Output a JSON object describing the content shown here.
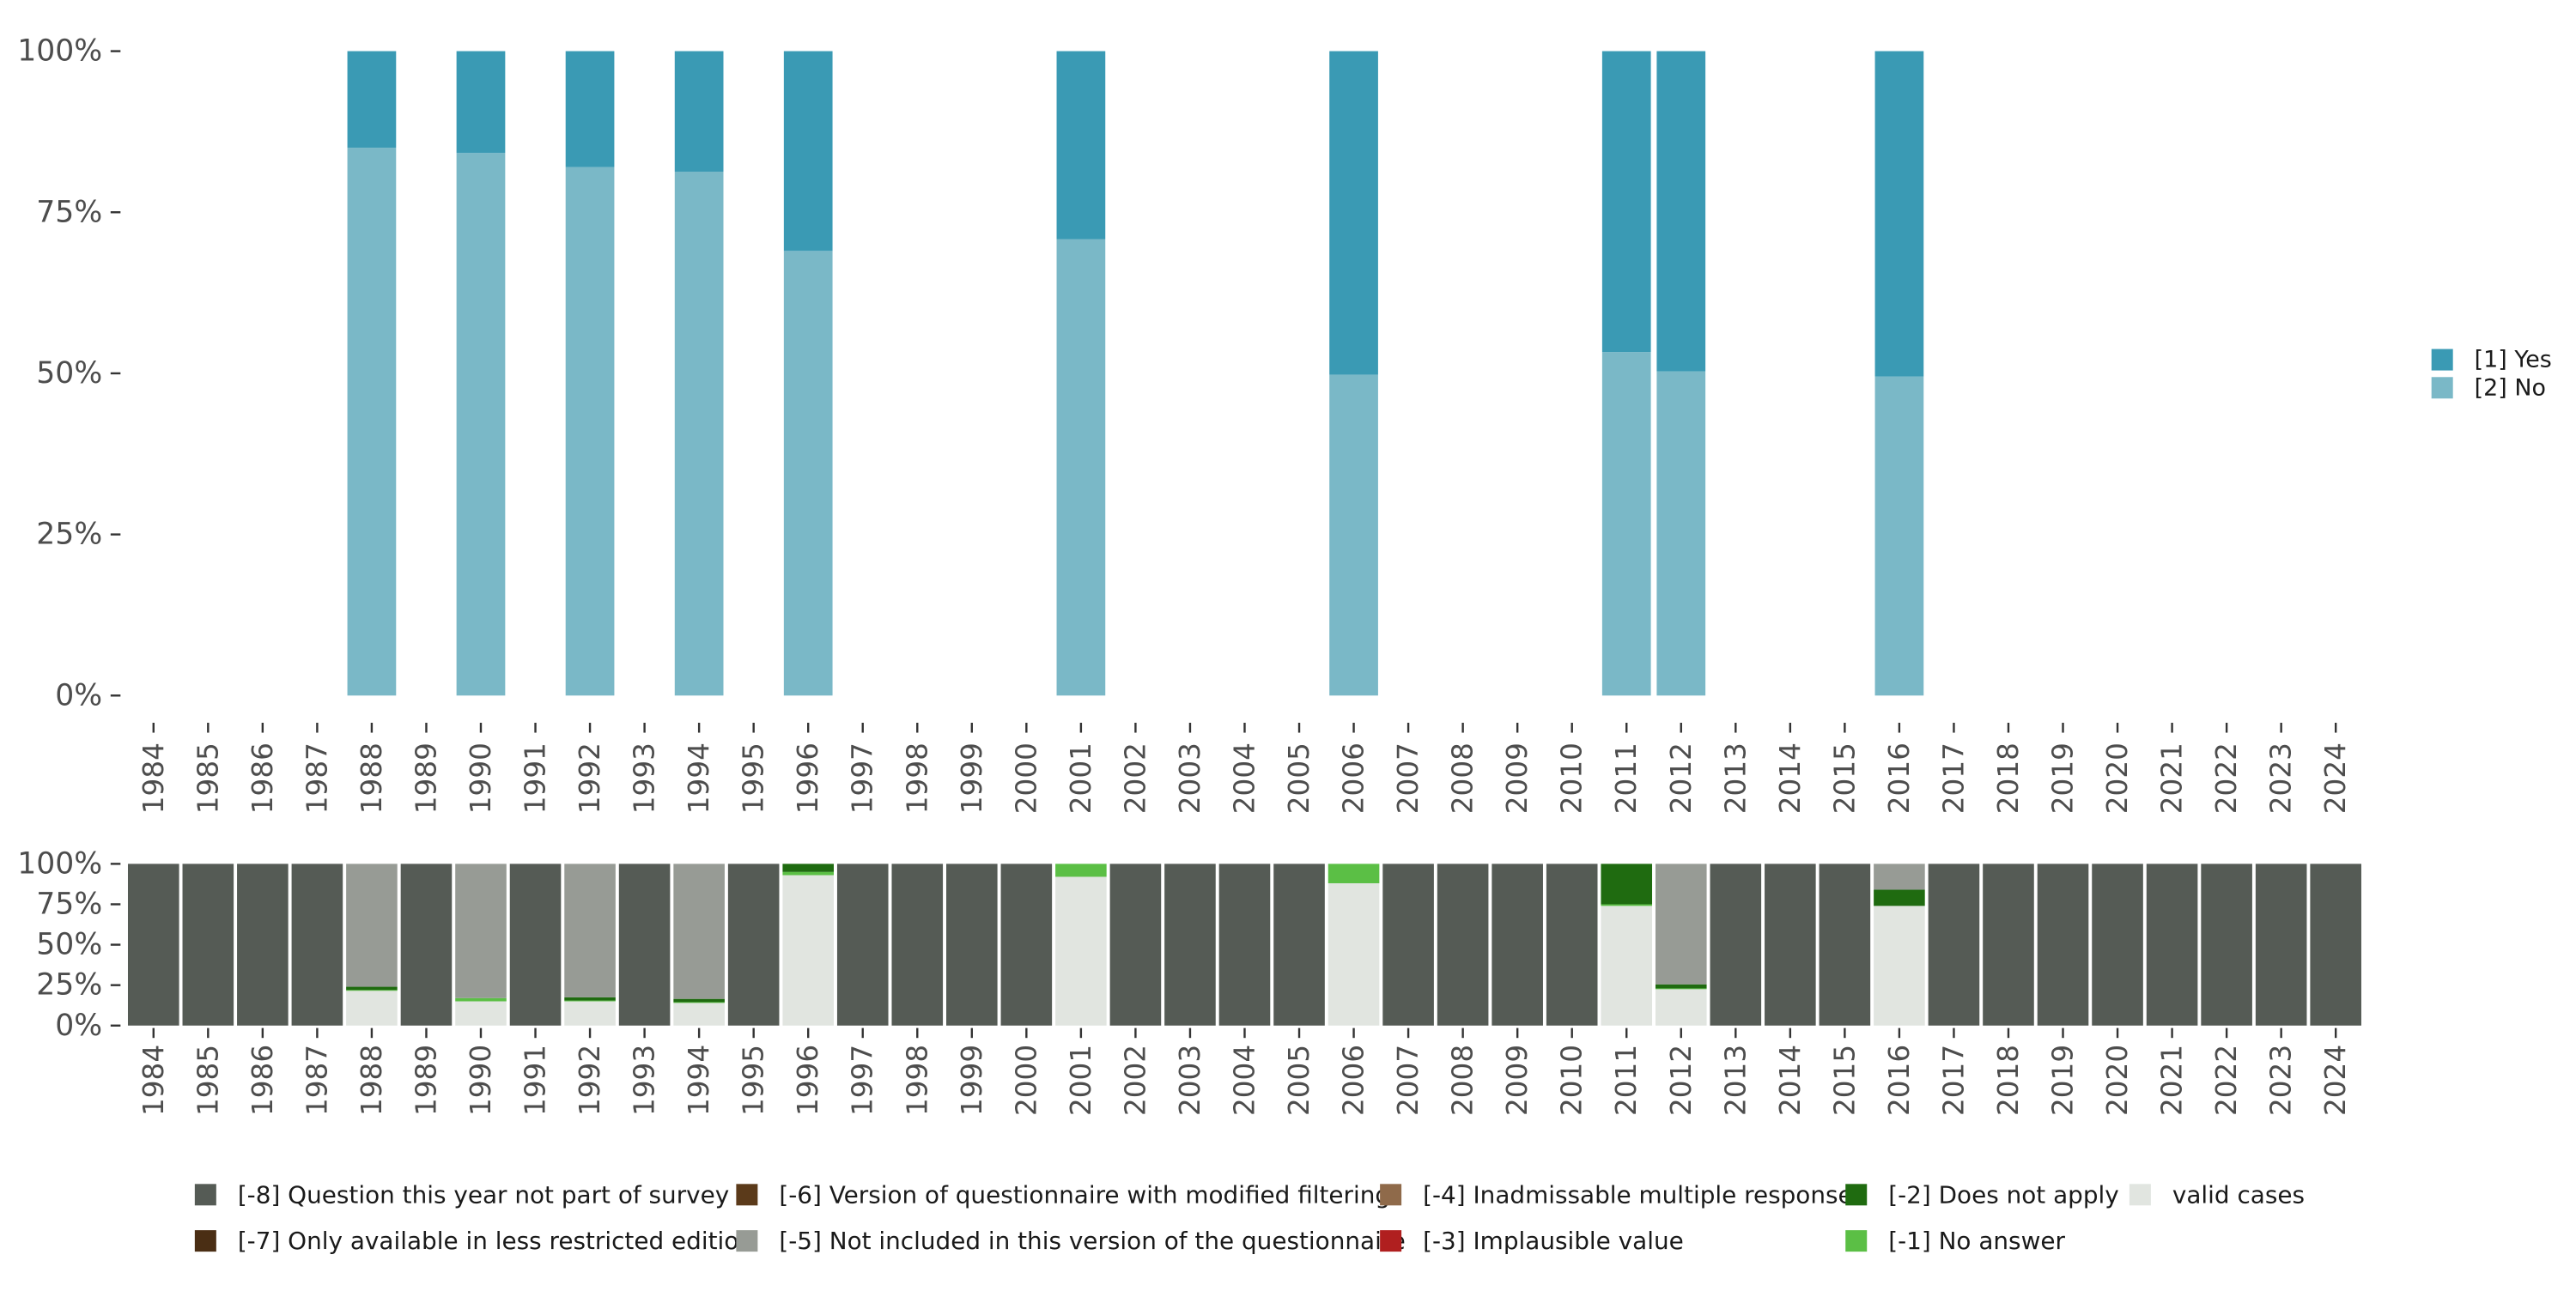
{
  "chart_data": [
    {
      "type": "bar",
      "stacked": true,
      "percent": true,
      "categories": [
        "1984",
        "1985",
        "1986",
        "1987",
        "1988",
        "1989",
        "1990",
        "1991",
        "1992",
        "1993",
        "1994",
        "1995",
        "1996",
        "1997",
        "1998",
        "1999",
        "2000",
        "2001",
        "2002",
        "2003",
        "2004",
        "2005",
        "2006",
        "2007",
        "2008",
        "2009",
        "2010",
        "2011",
        "2012",
        "2013",
        "2014",
        "2015",
        "2016",
        "2017",
        "2018",
        "2019",
        "2020",
        "2021",
        "2022",
        "2023",
        "2024"
      ],
      "yticks": [
        "0%",
        "25%",
        "50%",
        "75%",
        "100%"
      ],
      "ylim": [
        0,
        100
      ],
      "legend_position": "right",
      "series": [
        {
          "name": "[2] No",
          "color": "#7ab8c7",
          "values": [
            null,
            null,
            null,
            null,
            85,
            null,
            84.2,
            null,
            82,
            null,
            81.3,
            null,
            69,
            null,
            null,
            null,
            null,
            70.8,
            null,
            null,
            null,
            null,
            49.8,
            null,
            null,
            null,
            null,
            53.3,
            50.3,
            null,
            null,
            null,
            49.5,
            null,
            null,
            null,
            null,
            null,
            null,
            null,
            null
          ]
        },
        {
          "name": "[1] Yes",
          "color": "#3a9ab4",
          "values": [
            null,
            null,
            null,
            null,
            15,
            null,
            15.8,
            null,
            18,
            null,
            18.7,
            null,
            31,
            null,
            null,
            null,
            null,
            29.2,
            null,
            null,
            null,
            null,
            50.2,
            null,
            null,
            null,
            null,
            46.7,
            49.7,
            null,
            null,
            null,
            50.5,
            null,
            null,
            null,
            null,
            null,
            null,
            null,
            null
          ]
        }
      ]
    },
    {
      "type": "bar",
      "stacked": true,
      "percent": true,
      "categories": [
        "1984",
        "1985",
        "1986",
        "1987",
        "1988",
        "1989",
        "1990",
        "1991",
        "1992",
        "1993",
        "1994",
        "1995",
        "1996",
        "1997",
        "1998",
        "1999",
        "2000",
        "2001",
        "2002",
        "2003",
        "2004",
        "2005",
        "2006",
        "2007",
        "2008",
        "2009",
        "2010",
        "2011",
        "2012",
        "2013",
        "2014",
        "2015",
        "2016",
        "2017",
        "2018",
        "2019",
        "2020",
        "2021",
        "2022",
        "2023",
        "2024"
      ],
      "yticks": [
        "0%",
        "25%",
        "50%",
        "75%",
        "100%"
      ],
      "ylim": [
        0,
        100
      ],
      "legend_position": "bottom",
      "series": [
        {
          "name": "valid cases",
          "color": "#e1e5e0",
          "values": [
            0,
            0,
            0,
            0,
            21.5,
            0,
            15,
            0,
            15,
            0,
            14,
            0,
            93,
            0,
            0,
            0,
            0,
            92,
            0,
            0,
            0,
            0,
            88,
            0,
            0,
            0,
            0,
            74,
            22.5,
            0,
            0,
            0,
            74,
            0,
            0,
            0,
            0,
            0,
            0,
            0,
            0
          ]
        },
        {
          "name": "[-1] No answer",
          "color": "#5bbf45",
          "values": [
            0,
            0,
            0,
            0,
            0.5,
            0,
            2,
            0,
            0.5,
            0,
            0.5,
            0,
            2,
            0,
            0,
            0,
            0,
            8,
            0,
            0,
            0,
            0,
            12,
            0,
            0,
            0,
            0,
            1,
            0.5,
            0,
            0,
            0,
            0,
            0,
            0,
            0,
            0,
            0,
            0,
            0,
            0
          ]
        },
        {
          "name": "[-2] Does not apply",
          "color": "#1f6b10",
          "values": [
            0,
            0,
            0,
            0,
            2,
            0,
            0,
            0,
            2,
            0,
            2,
            0,
            5,
            0,
            0,
            0,
            0,
            0,
            0,
            0,
            0,
            0,
            0,
            0,
            0,
            0,
            0,
            25,
            2.5,
            0,
            0,
            0,
            10,
            0,
            0,
            0,
            0,
            0,
            0,
            0,
            0
          ]
        },
        {
          "name": "[-3] Implausible value",
          "color": "#b01f1f",
          "values": [
            0,
            0,
            0,
            0,
            0,
            0,
            0,
            0,
            0,
            0,
            0,
            0,
            0,
            0,
            0,
            0,
            0,
            0,
            0,
            0,
            0,
            0,
            0,
            0,
            0,
            0,
            0,
            0,
            0,
            0,
            0,
            0,
            0,
            0,
            0,
            0,
            0,
            0,
            0,
            0,
            0
          ]
        },
        {
          "name": "[-4] Inadmissable multiple response",
          "color": "#8f6a4a",
          "values": [
            0,
            0,
            0,
            0,
            0,
            0,
            0,
            0,
            0,
            0,
            0,
            0,
            0,
            0,
            0,
            0,
            0,
            0,
            0,
            0,
            0,
            0,
            0,
            0,
            0,
            0,
            0,
            0,
            0,
            0,
            0,
            0,
            0,
            0,
            0,
            0,
            0,
            0,
            0,
            0,
            0
          ]
        },
        {
          "name": "[-5] Not included in this version of the questionnaire",
          "color": "#979b95",
          "values": [
            0,
            0,
            0,
            0,
            76,
            0,
            83,
            0,
            82.5,
            0,
            83.5,
            0,
            0,
            0,
            0,
            0,
            0,
            0,
            0,
            0,
            0,
            0,
            0,
            0,
            0,
            0,
            0,
            0,
            74.5,
            0,
            0,
            0,
            16,
            0,
            0,
            0,
            0,
            0,
            0,
            0,
            0
          ]
        },
        {
          "name": "[-6] Version of questionnaire with modified filtering",
          "color": "#5b3a1a",
          "values": [
            0,
            0,
            0,
            0,
            0,
            0,
            0,
            0,
            0,
            0,
            0,
            0,
            0,
            0,
            0,
            0,
            0,
            0,
            0,
            0,
            0,
            0,
            0,
            0,
            0,
            0,
            0,
            0,
            0,
            0,
            0,
            0,
            0,
            0,
            0,
            0,
            0,
            0,
            0,
            0,
            0
          ]
        },
        {
          "name": "[-7] Only available in less restricted edition",
          "color": "#4a2e14",
          "values": [
            0,
            0,
            0,
            0,
            0,
            0,
            0,
            0,
            0,
            0,
            0,
            0,
            0,
            0,
            0,
            0,
            0,
            0,
            0,
            0,
            0,
            0,
            0,
            0,
            0,
            0,
            0,
            0,
            0,
            0,
            0,
            0,
            0,
            0,
            0,
            0,
            0,
            0,
            0,
            0,
            0
          ]
        },
        {
          "name": "[-8] Question this year not part of survey",
          "color": "#555b55",
          "values": [
            100,
            100,
            100,
            100,
            0,
            100,
            0,
            100,
            0,
            100,
            0,
            100,
            0,
            100,
            100,
            100,
            100,
            0,
            100,
            100,
            100,
            100,
            0,
            100,
            100,
            100,
            100,
            0,
            0,
            100,
            100,
            100,
            0,
            100,
            100,
            100,
            100,
            100,
            100,
            100,
            100
          ]
        }
      ],
      "legend_order": [
        "[-8] Question this year not part of survey",
        "[-7] Only available in less restricted edition",
        "[-6] Version of questionnaire with modified filtering",
        "[-5] Not included in this version of the questionnaire",
        "[-4] Inadmissable multiple response",
        "[-3] Implausible value",
        "[-2] Does not apply",
        "[-1] No answer",
        "valid cases"
      ]
    }
  ]
}
